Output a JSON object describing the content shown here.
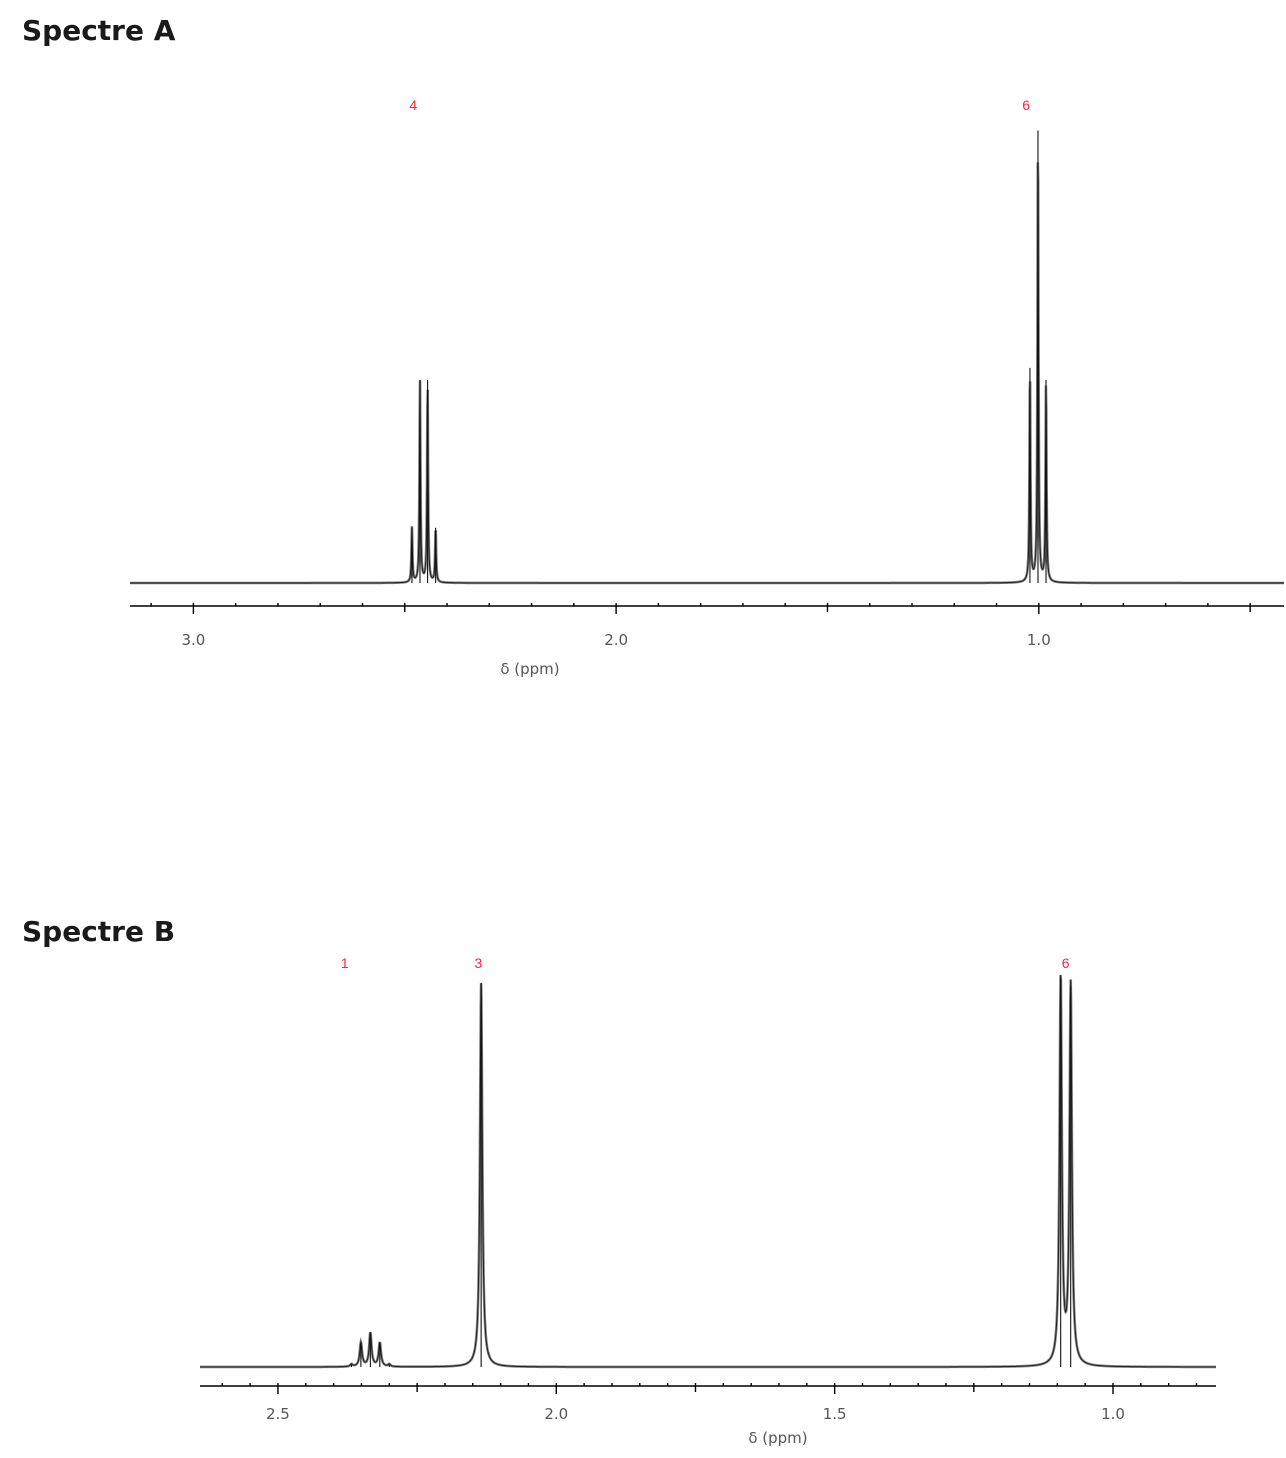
{
  "chart_data": [
    {
      "type": "line",
      "title": "Spectre A",
      "xlabel": "δ (ppm)",
      "ylabel": "",
      "xlim": [
        3.15,
        0.42
      ],
      "ylim": [
        0,
        1
      ],
      "x_reversed": true,
      "grid": false,
      "ticks": [
        {
          "value": 3.0,
          "label": "3.0"
        },
        {
          "value": 2.0,
          "label": "2.0"
        },
        {
          "value": 1.0,
          "label": "1.0"
        }
      ],
      "minor_tick_step": 0.1,
      "medium_tick_step": 0.5,
      "integrations": [
        {
          "x": 2.48,
          "label": "4"
        },
        {
          "x": 1.03,
          "label": "6"
        }
      ],
      "series": [
        {
          "color": "#808080",
          "baseline": 0.036,
          "peaks": [
            {
              "x": 2.483,
              "y": 0.15
            },
            {
              "x": 2.464,
              "y": 0.455
            },
            {
              "x": 2.446,
              "y": 0.455
            },
            {
              "x": 2.427,
              "y": 0.15
            },
            {
              "x": 1.021,
              "y": 0.48
            },
            {
              "x": 1.002,
              "y": 0.97
            },
            {
              "x": 0.983,
              "y": 0.455
            }
          ],
          "linewidth_ppm": 0.0014
        }
      ]
    },
    {
      "type": "line",
      "title": "Spectre B",
      "xlabel": "δ (ppm)",
      "ylabel": "",
      "xlim": [
        2.64,
        0.815
      ],
      "ylim": [
        0,
        1
      ],
      "x_reversed": true,
      "grid": false,
      "ticks": [
        {
          "value": 2.5,
          "label": "2.5"
        },
        {
          "value": 2.0,
          "label": "2.0"
        },
        {
          "value": 1.5,
          "label": "1.5"
        },
        {
          "value": 1.0,
          "label": "1.0"
        }
      ],
      "minor_tick_step": 0.05,
      "medium_tick_step": 0.25,
      "integrations": [
        {
          "x": 2.38,
          "label": "1"
        },
        {
          "x": 2.14,
          "label": "3"
        },
        {
          "x": 1.085,
          "label": "6"
        }
      ],
      "series": [
        {
          "color": "#808080",
          "baseline": 0.014,
          "peaks": [
            {
              "x": 2.368,
              "y": 0.02
            },
            {
              "x": 2.351,
              "y": 0.075
            },
            {
              "x": 2.334,
              "y": 0.1
            },
            {
              "x": 2.317,
              "y": 0.075
            },
            {
              "x": 2.3,
              "y": 0.02
            },
            {
              "x": 2.135,
              "y": 0.99
            },
            {
              "x": 1.094,
              "y": 1.0
            },
            {
              "x": 1.076,
              "y": 0.98
            }
          ],
          "linewidth_ppm": 0.0025
        }
      ]
    }
  ]
}
